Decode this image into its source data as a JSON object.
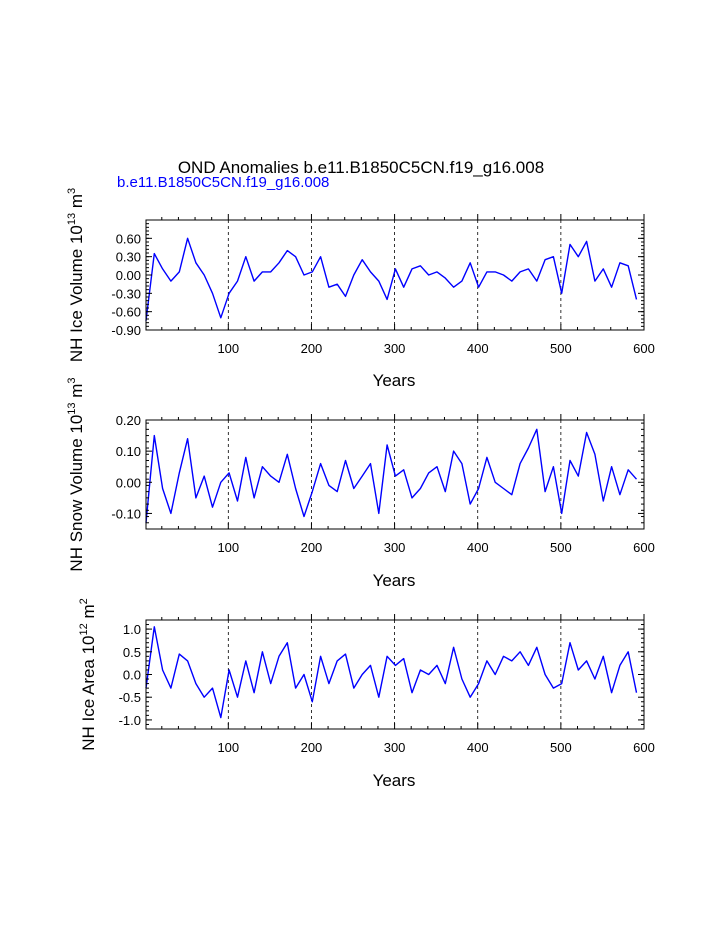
{
  "title": "OND Anomalies b.e11.B1850C5CN.f19_g16.008",
  "subtitle": "b.e11.B1850C5CN.f19_g16.008",
  "colors": {
    "series": "#0000ff",
    "axis": "#000000",
    "grid": "#000000",
    "subtitle": "#0000ff"
  },
  "chart_data": [
    {
      "type": "line",
      "name": "ice-volume",
      "ylabel_main": "NH Ice Volume 10",
      "ylabel_exp": "13",
      "ylabel_unit": " m",
      "ylabel_unit_exp": "3",
      "xlabel": "Years",
      "xlim": [
        1,
        600
      ],
      "ylim": [
        -0.9,
        0.9
      ],
      "xticks": [
        100,
        200,
        300,
        400,
        500,
        600
      ],
      "xtick_labels": [
        "100",
        "200",
        "300",
        "400",
        "500",
        "600"
      ],
      "yticks": [
        -0.9,
        -0.6,
        -0.3,
        0.0,
        0.3,
        0.6
      ],
      "ytick_labels": [
        "-0.90",
        "-0.60",
        "-0.30",
        "0.00",
        "0.30",
        "0.60"
      ],
      "grid_x": [
        100,
        200,
        300,
        400,
        500
      ],
      "series": [
        {
          "name": "b.e11.B1850C5CN.f19_g16.008",
          "x_start": 1,
          "x_step": 10,
          "values": [
            -0.75,
            0.35,
            0.1,
            -0.1,
            0.05,
            0.6,
            0.2,
            0.0,
            -0.3,
            -0.7,
            -0.3,
            -0.1,
            0.3,
            -0.1,
            0.05,
            0.05,
            0.2,
            0.4,
            0.3,
            0.0,
            0.05,
            0.3,
            -0.2,
            -0.15,
            -0.35,
            0.0,
            0.25,
            0.05,
            -0.1,
            -0.4,
            0.1,
            -0.2,
            0.1,
            0.15,
            0.0,
            0.05,
            -0.05,
            -0.2,
            -0.1,
            0.2,
            -0.2,
            0.05,
            0.05,
            0.0,
            -0.1,
            0.05,
            0.1,
            -0.1,
            0.25,
            0.3,
            -0.3,
            0.5,
            0.3,
            0.55,
            -0.1,
            0.1,
            -0.2,
            0.2,
            0.15,
            -0.4
          ]
        }
      ]
    },
    {
      "type": "line",
      "name": "snow-volume",
      "ylabel_main": "NH Snow Volume 10",
      "ylabel_exp": "13",
      "ylabel_unit": " m",
      "ylabel_unit_exp": "3",
      "xlabel": "Years",
      "xlim": [
        1,
        600
      ],
      "ylim": [
        -0.15,
        0.2
      ],
      "xticks": [
        100,
        200,
        300,
        400,
        500,
        600
      ],
      "xtick_labels": [
        "100",
        "200",
        "300",
        "400",
        "500",
        "600"
      ],
      "yticks": [
        -0.1,
        0.0,
        0.1,
        0.2
      ],
      "ytick_labels": [
        "-0.10",
        "0.00",
        "0.10",
        "0.20"
      ],
      "grid_x": [
        100,
        200,
        300,
        400,
        500
      ],
      "series": [
        {
          "name": "b.e11.B1850C5CN.f19_g16.008",
          "x_start": 1,
          "x_step": 10,
          "values": [
            -0.13,
            0.15,
            -0.02,
            -0.1,
            0.03,
            0.14,
            -0.05,
            0.02,
            -0.08,
            0.0,
            0.03,
            -0.06,
            0.08,
            -0.05,
            0.05,
            0.02,
            0.0,
            0.09,
            -0.02,
            -0.11,
            -0.03,
            0.06,
            -0.01,
            -0.03,
            0.07,
            -0.02,
            0.02,
            0.06,
            -0.1,
            0.12,
            0.02,
            0.04,
            -0.05,
            -0.02,
            0.03,
            0.05,
            -0.03,
            0.1,
            0.06,
            -0.07,
            -0.02,
            0.08,
            0.0,
            -0.02,
            -0.04,
            0.06,
            0.11,
            0.17,
            -0.03,
            0.05,
            -0.1,
            0.07,
            0.02,
            0.16,
            0.09,
            -0.06,
            0.05,
            -0.04,
            0.04,
            0.01
          ]
        }
      ]
    },
    {
      "type": "line",
      "name": "ice-area",
      "ylabel_main": "NH Ice Area 10",
      "ylabel_exp": "12",
      "ylabel_unit": " m",
      "ylabel_unit_exp": "2",
      "xlabel": "Years",
      "xlim": [
        1,
        600
      ],
      "ylim": [
        -1.2,
        1.2
      ],
      "xticks": [
        100,
        200,
        300,
        400,
        500,
        600
      ],
      "xtick_labels": [
        "100",
        "200",
        "300",
        "400",
        "500",
        "600"
      ],
      "yticks": [
        -1.0,
        -0.5,
        0.0,
        0.5,
        1.0
      ],
      "ytick_labels": [
        "-1.0",
        "-0.5",
        "0.0",
        "0.5",
        "1.0"
      ],
      "grid_x": [
        100,
        200,
        300,
        400,
        500
      ],
      "series": [
        {
          "name": "b.e11.B1850C5CN.f19_g16.008",
          "x_start": 1,
          "x_step": 10,
          "values": [
            -0.3,
            1.05,
            0.1,
            -0.3,
            0.45,
            0.3,
            -0.2,
            -0.5,
            -0.3,
            -0.95,
            0.1,
            -0.5,
            0.3,
            -0.4,
            0.5,
            -0.2,
            0.4,
            0.7,
            -0.3,
            0.0,
            -0.6,
            0.4,
            -0.2,
            0.3,
            0.45,
            -0.3,
            0.0,
            0.2,
            -0.5,
            0.4,
            0.2,
            0.35,
            -0.4,
            0.1,
            0.0,
            0.2,
            -0.2,
            0.6,
            -0.1,
            -0.5,
            -0.2,
            0.3,
            0.0,
            0.4,
            0.3,
            0.5,
            0.2,
            0.6,
            0.0,
            -0.3,
            -0.2,
            0.7,
            0.1,
            0.3,
            -0.1,
            0.4,
            -0.4,
            0.2,
            0.5,
            -0.4
          ]
        }
      ]
    }
  ]
}
